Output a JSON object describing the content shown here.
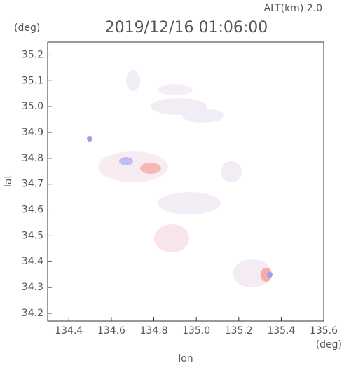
{
  "chart_data": {
    "type": "field",
    "title": "2019/12/16 01:06:00",
    "header": "ALT(km) 2.0",
    "y_unit": "(deg)",
    "x_unit": "(deg)",
    "x_label": "lon",
    "y_label": "lat",
    "xlim": [
      134.3,
      135.6
    ],
    "xticks": [
      134.4,
      134.6,
      134.8,
      {
        "value": 135,
        "label": "135.0"
      },
      135.2,
      135.4,
      135.6
    ],
    "ylim": [
      34.17,
      35.25
    ],
    "yticks": [
      34.2,
      34.3,
      34.4,
      34.5,
      34.6,
      34.7,
      34.8,
      34.9,
      {
        "value": 35,
        "label": "35.0"
      },
      35.1,
      35.2
    ]
  }
}
